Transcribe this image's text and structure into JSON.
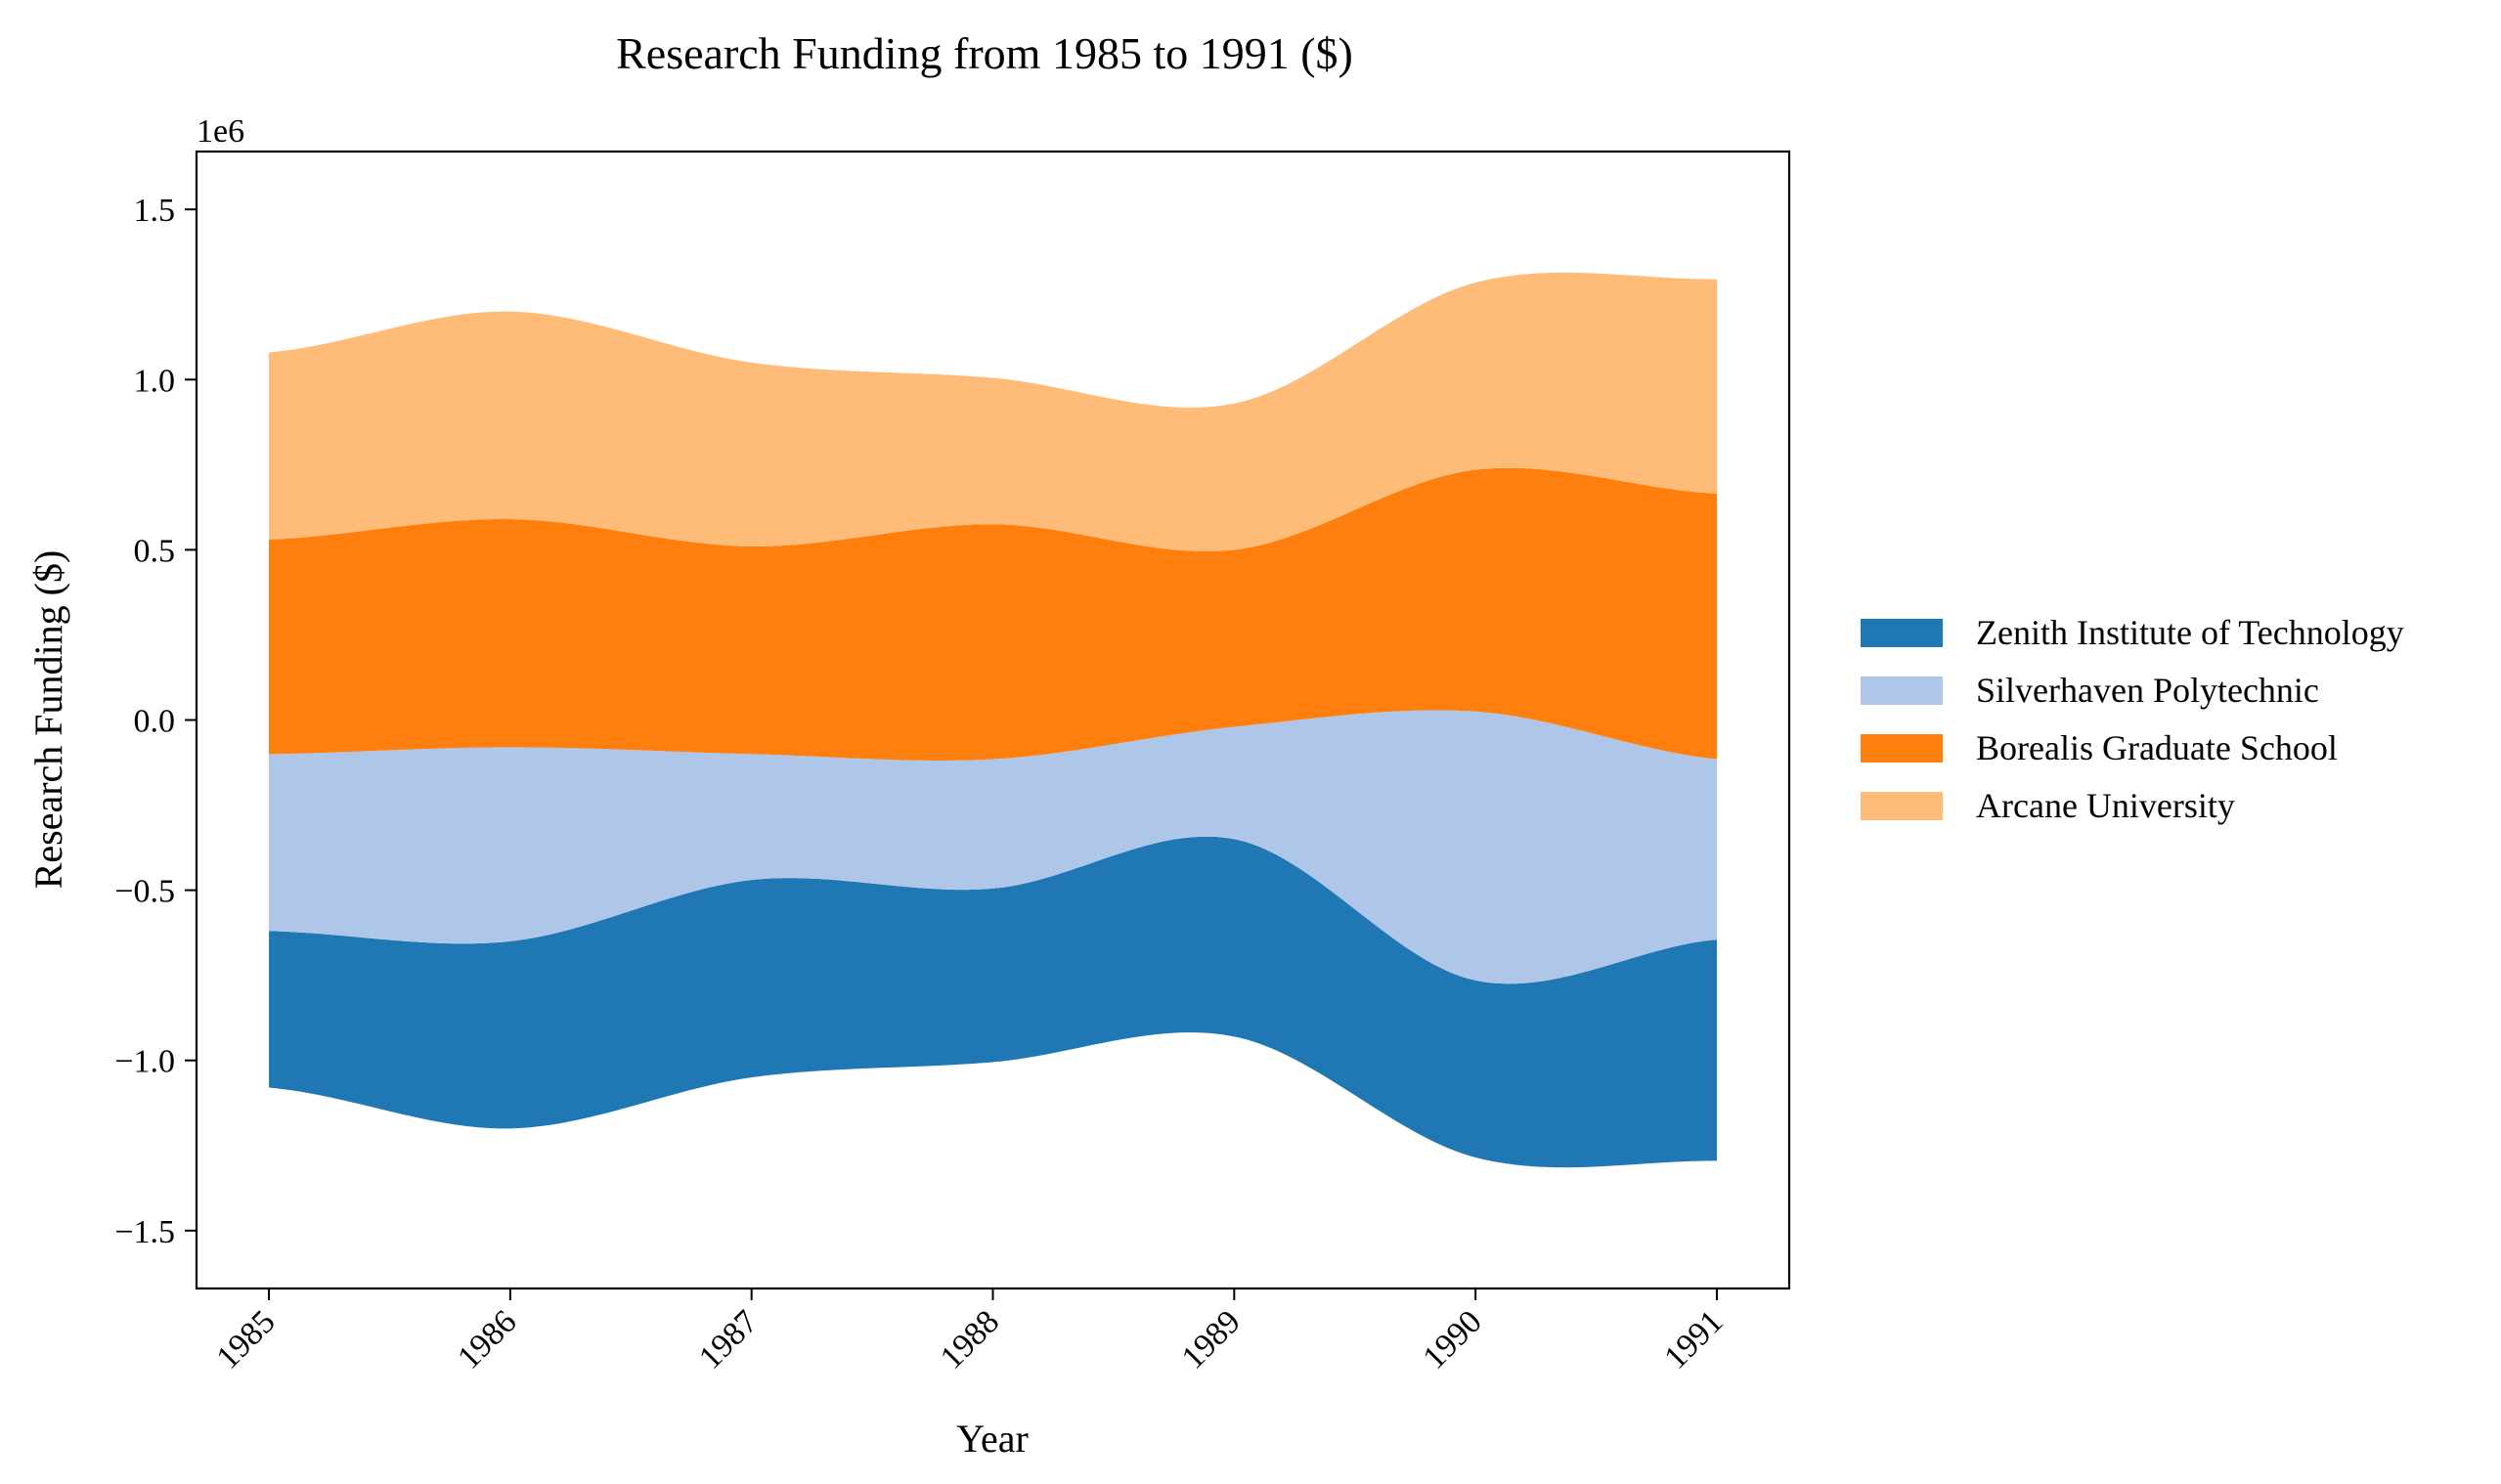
{
  "chart_data": {
    "type": "area",
    "subtype": "streamgraph",
    "title": "Research Funding from 1985 to 1991 ($)",
    "xlabel": "Year",
    "ylabel": "Research Funding ($)",
    "offset_label": "1e6",
    "categories": [
      "1985",
      "1986",
      "1987",
      "1988",
      "1989",
      "1990",
      "1991"
    ],
    "x": [
      1985,
      1986,
      1987,
      1988,
      1989,
      1990,
      1991
    ],
    "ylim": [
      -1.67,
      1.67
    ],
    "y_ticks": [
      -1.5,
      -1.0,
      -0.5,
      0.0,
      0.5,
      1.0,
      1.5
    ],
    "y_tick_labels": [
      "−1.5",
      "−1.0",
      "−0.5",
      "0.0",
      "0.5",
      "1.0",
      "1.5"
    ],
    "y_scale_note": "values in millions of dollars (axis offset 1e6)",
    "grid": false,
    "legend_position": "right",
    "series": [
      {
        "name": "Zenith Institute of Technology",
        "color": "#1f77b4",
        "values": [
          0.46,
          0.55,
          0.58,
          0.51,
          0.58,
          0.52,
          0.65
        ]
      },
      {
        "name": "Silverhaven Polytechnic",
        "color": "#aec7e8",
        "values": [
          0.52,
          0.57,
          0.37,
          0.38,
          0.33,
          0.79,
          0.53
        ]
      },
      {
        "name": "Borealis Graduate School",
        "color": "#ff7f0e",
        "values": [
          0.63,
          0.67,
          0.61,
          0.69,
          0.52,
          0.71,
          0.78
        ]
      },
      {
        "name": "Arcane University",
        "color": "#ffbb78",
        "values": [
          0.55,
          0.61,
          0.54,
          0.43,
          0.43,
          0.55,
          0.63
        ]
      }
    ]
  }
}
